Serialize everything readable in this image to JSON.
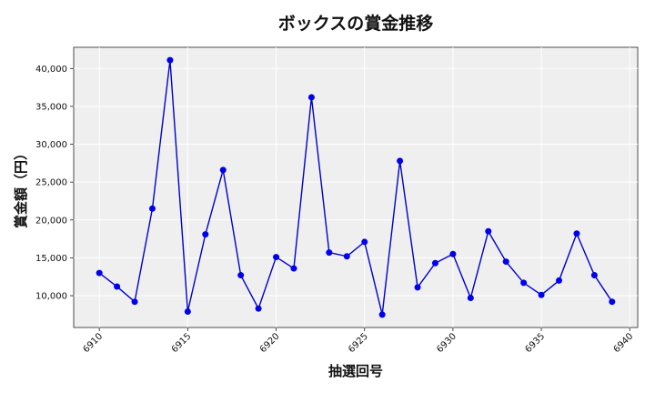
{
  "chart_data": {
    "type": "line",
    "title": "ボックスの賞金推移",
    "xlabel": "抽選回号",
    "ylabel": "賞金額（円）",
    "x": [
      6910,
      6911,
      6912,
      6913,
      6914,
      6915,
      6916,
      6917,
      6918,
      6919,
      6920,
      6921,
      6922,
      6923,
      6924,
      6925,
      6926,
      6927,
      6928,
      6929,
      6930,
      6931,
      6932,
      6933,
      6934,
      6935,
      6936,
      6937,
      6938,
      6939
    ],
    "series": [
      {
        "values": [
          13000,
          11200,
          9200,
          21500,
          41100,
          7900,
          18100,
          26600,
          12700,
          8300,
          15100,
          13600,
          36200,
          15700,
          15200,
          17100,
          7500,
          27800,
          11100,
          14300,
          15500,
          9700,
          18500,
          14500,
          11700,
          10100,
          12000,
          18200,
          12700,
          9200
        ],
        "color": "#0000cc",
        "marker_color": "#0000ee"
      }
    ],
    "xticks": [
      6910,
      6915,
      6920,
      6925,
      6930,
      6935,
      6940
    ],
    "xtick_labels": [
      "6910",
      "6915",
      "6920",
      "6925",
      "6930",
      "6935",
      "6940"
    ],
    "yticks": [
      10000,
      15000,
      20000,
      25000,
      30000,
      35000,
      40000
    ],
    "ytick_labels": [
      "10,000",
      "15,000",
      "20,000",
      "25,000",
      "30,000",
      "35,000",
      "40,000"
    ],
    "xlim": [
      6908.55,
      6940.45
    ],
    "ylim": [
      5800,
      42800
    ],
    "grid": true,
    "background": "#efefef"
  }
}
